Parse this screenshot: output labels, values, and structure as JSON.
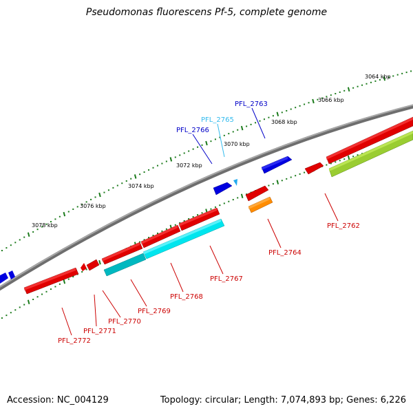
{
  "title": "Pseudomonas fluorescens Pf-5, complete genome",
  "footer": {
    "accession": "Accession: NC_004129",
    "topology": "Topology: circular; Length: 7,074,893 bp; Genes: 6,226"
  },
  "scale_labels": [
    "3064 kbp",
    "3066 kbp",
    "3068 kbp",
    "3070 kbp",
    "3072 kbp",
    "3074 kbp",
    "3076 kbp",
    "3078 kbp"
  ],
  "gene_labels": [
    {
      "text": "PFL_2763",
      "color": "#0000c8"
    },
    {
      "text": "PFL_2765",
      "color": "#33bbee"
    },
    {
      "text": "PFL_2766",
      "color": "#0000c8"
    },
    {
      "text": "PFL_2762",
      "color": "#cc0000"
    },
    {
      "text": "PFL_2764",
      "color": "#cc0000"
    },
    {
      "text": "PFL_2767",
      "color": "#cc0000"
    },
    {
      "text": "PFL_2768",
      "color": "#cc0000"
    },
    {
      "text": "PFL_2769",
      "color": "#cc0000"
    },
    {
      "text": "PFL_2770",
      "color": "#cc0000"
    },
    {
      "text": "PFL_2771",
      "color": "#cc0000"
    },
    {
      "text": "PFL_2772",
      "color": "#cc0000"
    }
  ],
  "colors": {
    "backbone": "#808080",
    "tick": "#1a7a1a",
    "forward_cds": "#0000e0",
    "reverse_cds": "#e00000",
    "cyan_feature": "#00e5ee",
    "green_feature": "#9acd32",
    "orange_feature": "#ff8c00"
  }
}
